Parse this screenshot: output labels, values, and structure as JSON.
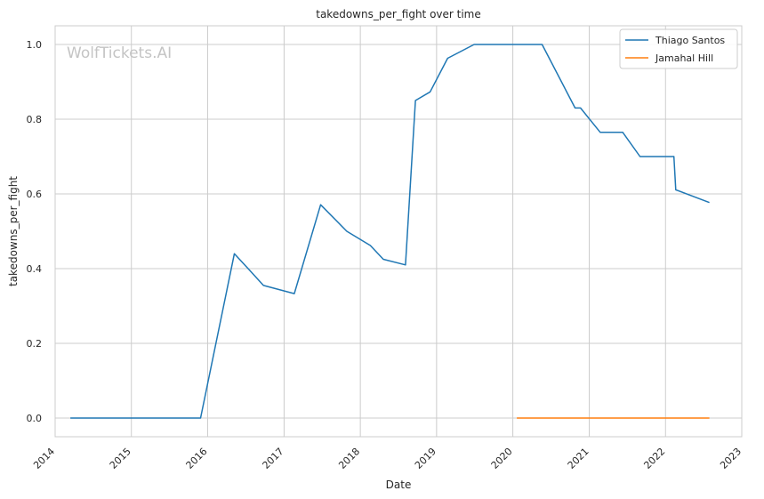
{
  "chart_data": {
    "type": "line",
    "title": "takedowns_per_fight over time",
    "xlabel": "Date",
    "ylabel": "takedowns_per_fight",
    "watermark": "WolfTickets.AI",
    "xlim": [
      "2014-01-01",
      "2023-01-01"
    ],
    "ylim": [
      -0.05,
      1.05
    ],
    "x_ticks": [
      "2014",
      "2015",
      "2016",
      "2017",
      "2018",
      "2019",
      "2020",
      "2021",
      "2022",
      "2023"
    ],
    "y_ticks": [
      "0.0",
      "0.2",
      "0.4",
      "0.6",
      "0.8",
      "1.0"
    ],
    "grid": true,
    "legend_position": "top-right",
    "series": [
      {
        "name": "Thiago Santos",
        "color": "#1f77b4",
        "points": [
          [
            "2014-03-15",
            0.0
          ],
          [
            "2015-11-28",
            0.0
          ],
          [
            "2016-05-08",
            0.44
          ],
          [
            "2016-07-13",
            0.4
          ],
          [
            "2016-09-24",
            0.355
          ],
          [
            "2017-02-19",
            0.333
          ],
          [
            "2017-06-25",
            0.571
          ],
          [
            "2017-10-28",
            0.5
          ],
          [
            "2018-02-18",
            0.462
          ],
          [
            "2018-04-21",
            0.425
          ],
          [
            "2018-08-05",
            0.41
          ],
          [
            "2018-09-22",
            0.85
          ],
          [
            "2018-12-01",
            0.873
          ],
          [
            "2019-02-23",
            0.963
          ],
          [
            "2019-06-30",
            1.0
          ],
          [
            "2020-05-20",
            1.0
          ],
          [
            "2020-10-25",
            0.83
          ],
          [
            "2020-11-20",
            0.83
          ],
          [
            "2021-02-22",
            0.765
          ],
          [
            "2021-06-10",
            0.765
          ],
          [
            "2021-09-01",
            0.7
          ],
          [
            "2021-09-25",
            0.7
          ],
          [
            "2022-02-10",
            0.7
          ],
          [
            "2022-02-19",
            0.611
          ],
          [
            "2022-07-30",
            0.577
          ]
        ]
      },
      {
        "name": "Jamahal Hill",
        "color": "#ff7f0e",
        "points": [
          [
            "2020-01-20",
            0.0
          ],
          [
            "2022-07-30",
            0.0
          ]
        ]
      }
    ]
  }
}
